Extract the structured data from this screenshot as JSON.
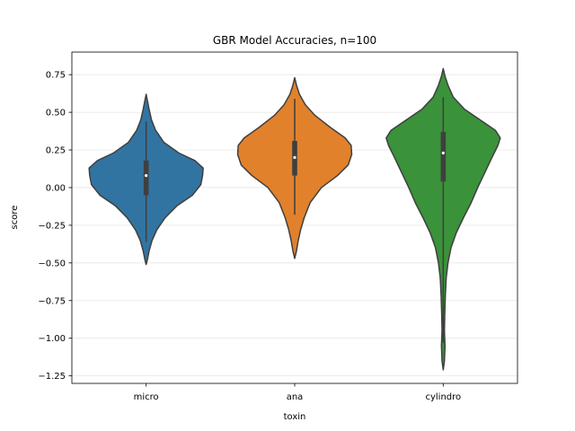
{
  "chart_data": {
    "type": "violin",
    "title": "GBR Model Accuracies, n=100",
    "xlabel": "toxin",
    "ylabel": "score",
    "ylim": [
      -1.3,
      0.9
    ],
    "yticks": [
      0.75,
      0.5,
      0.25,
      0.0,
      -0.25,
      -0.5,
      -0.75,
      -1.0,
      -1.25
    ],
    "ytick_labels": [
      "0.75",
      "0.50",
      "0.25",
      "0.00",
      "−0.25",
      "−0.50",
      "−0.75",
      "−1.00",
      "−1.25"
    ],
    "grid": true,
    "categories": [
      "micro",
      "ana",
      "cylindro"
    ],
    "series": [
      {
        "category": "micro",
        "color": "#3274a1",
        "median": 0.08,
        "q1": -0.05,
        "q3": 0.18,
        "whisker_low": -0.36,
        "whisker_high": 0.44,
        "min": -0.51,
        "max": 0.62,
        "density": [
          [
            -0.51,
            0.0
          ],
          [
            -0.48,
            0.02
          ],
          [
            -0.42,
            0.05
          ],
          [
            -0.35,
            0.1
          ],
          [
            -0.28,
            0.18
          ],
          [
            -0.2,
            0.32
          ],
          [
            -0.12,
            0.52
          ],
          [
            -0.05,
            0.78
          ],
          [
            0.02,
            0.92
          ],
          [
            0.08,
            0.95
          ],
          [
            0.13,
            0.96
          ],
          [
            0.18,
            0.82
          ],
          [
            0.23,
            0.55
          ],
          [
            0.3,
            0.3
          ],
          [
            0.38,
            0.16
          ],
          [
            0.45,
            0.09
          ],
          [
            0.52,
            0.05
          ],
          [
            0.58,
            0.02
          ],
          [
            0.62,
            0.0
          ]
        ]
      },
      {
        "category": "ana",
        "color": "#e1812c",
        "median": 0.2,
        "q1": 0.08,
        "q3": 0.31,
        "whisker_low": -0.18,
        "whisker_high": 0.59,
        "min": -0.47,
        "max": 0.73,
        "density": [
          [
            -0.47,
            0.0
          ],
          [
            -0.42,
            0.03
          ],
          [
            -0.35,
            0.06
          ],
          [
            -0.28,
            0.1
          ],
          [
            -0.2,
            0.16
          ],
          [
            -0.1,
            0.26
          ],
          [
            0.0,
            0.45
          ],
          [
            0.08,
            0.72
          ],
          [
            0.15,
            0.9
          ],
          [
            0.22,
            0.96
          ],
          [
            0.28,
            0.95
          ],
          [
            0.33,
            0.85
          ],
          [
            0.4,
            0.6
          ],
          [
            0.48,
            0.34
          ],
          [
            0.55,
            0.18
          ],
          [
            0.62,
            0.08
          ],
          [
            0.68,
            0.03
          ],
          [
            0.73,
            0.0
          ]
        ]
      },
      {
        "category": "cylindro",
        "color": "#3a923a",
        "median": 0.23,
        "q1": 0.04,
        "q3": 0.37,
        "whisker_low": -1.03,
        "whisker_high": 0.6,
        "min": -1.21,
        "max": 0.79,
        "density": [
          [
            -1.21,
            0.0
          ],
          [
            -1.15,
            0.02
          ],
          [
            -1.05,
            0.03
          ],
          [
            -0.95,
            0.02
          ],
          [
            -0.85,
            0.025
          ],
          [
            -0.72,
            0.035
          ],
          [
            -0.6,
            0.05
          ],
          [
            -0.5,
            0.08
          ],
          [
            -0.4,
            0.13
          ],
          [
            -0.3,
            0.22
          ],
          [
            -0.2,
            0.34
          ],
          [
            -0.1,
            0.47
          ],
          [
            0.0,
            0.58
          ],
          [
            0.1,
            0.7
          ],
          [
            0.2,
            0.82
          ],
          [
            0.28,
            0.92
          ],
          [
            0.33,
            0.96
          ],
          [
            0.38,
            0.88
          ],
          [
            0.45,
            0.62
          ],
          [
            0.52,
            0.36
          ],
          [
            0.6,
            0.17
          ],
          [
            0.68,
            0.08
          ],
          [
            0.74,
            0.03
          ],
          [
            0.79,
            0.0
          ]
        ]
      }
    ]
  }
}
